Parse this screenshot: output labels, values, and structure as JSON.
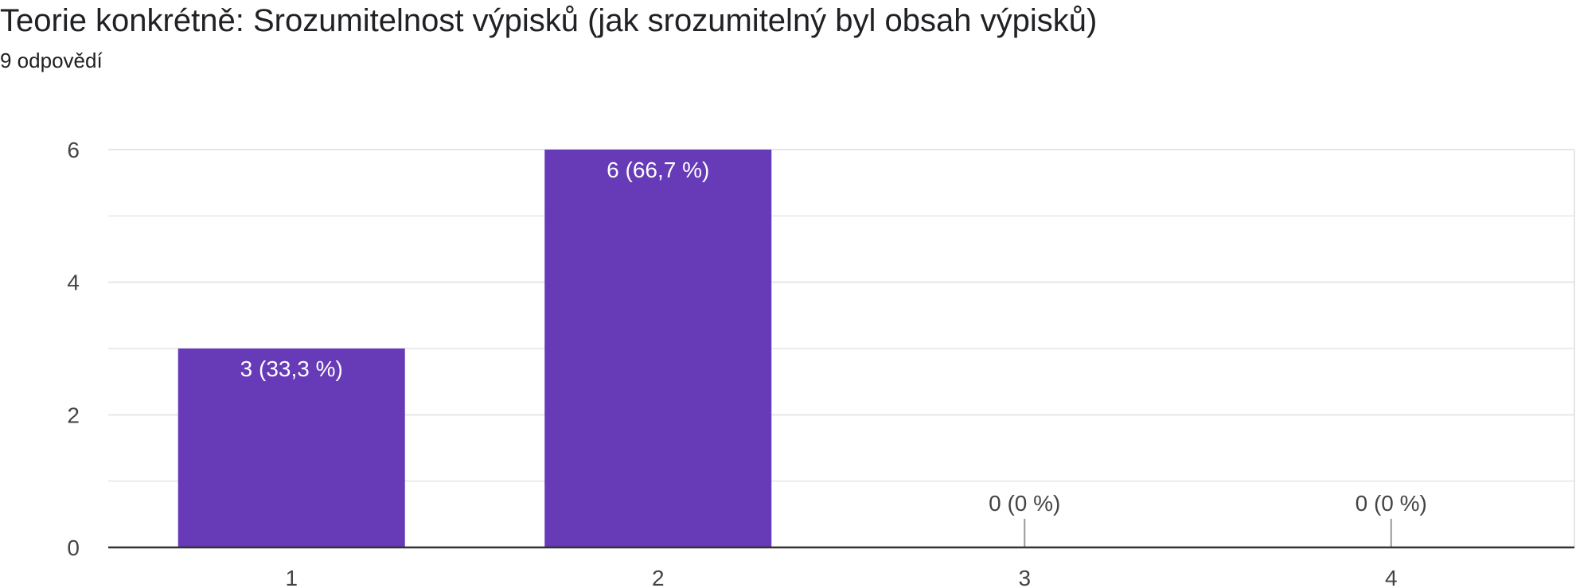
{
  "header": {
    "title": "Teorie konkrétně: Srozumitelnost výpisků (jak srozumitelný byl obsah výpisků)",
    "response_count": "9 odpovědí"
  },
  "chart_data": {
    "type": "bar",
    "categories": [
      "1",
      "2",
      "3",
      "4"
    ],
    "values": [
      3,
      6,
      0,
      0
    ],
    "data_labels": [
      "3 (33,3 %)",
      "6 (66,7 %)",
      "0 (0 %)",
      "0 (0 %)"
    ],
    "y_ticks": [
      "0",
      "2",
      "4",
      "6"
    ],
    "ylim": [
      0,
      6
    ],
    "grid": true,
    "legend": "none",
    "title": "",
    "xlabel": "",
    "ylabel": "",
    "colors": {
      "bar": "#673ab7",
      "grid": "#e6e6e6",
      "axis": "#333333"
    }
  }
}
